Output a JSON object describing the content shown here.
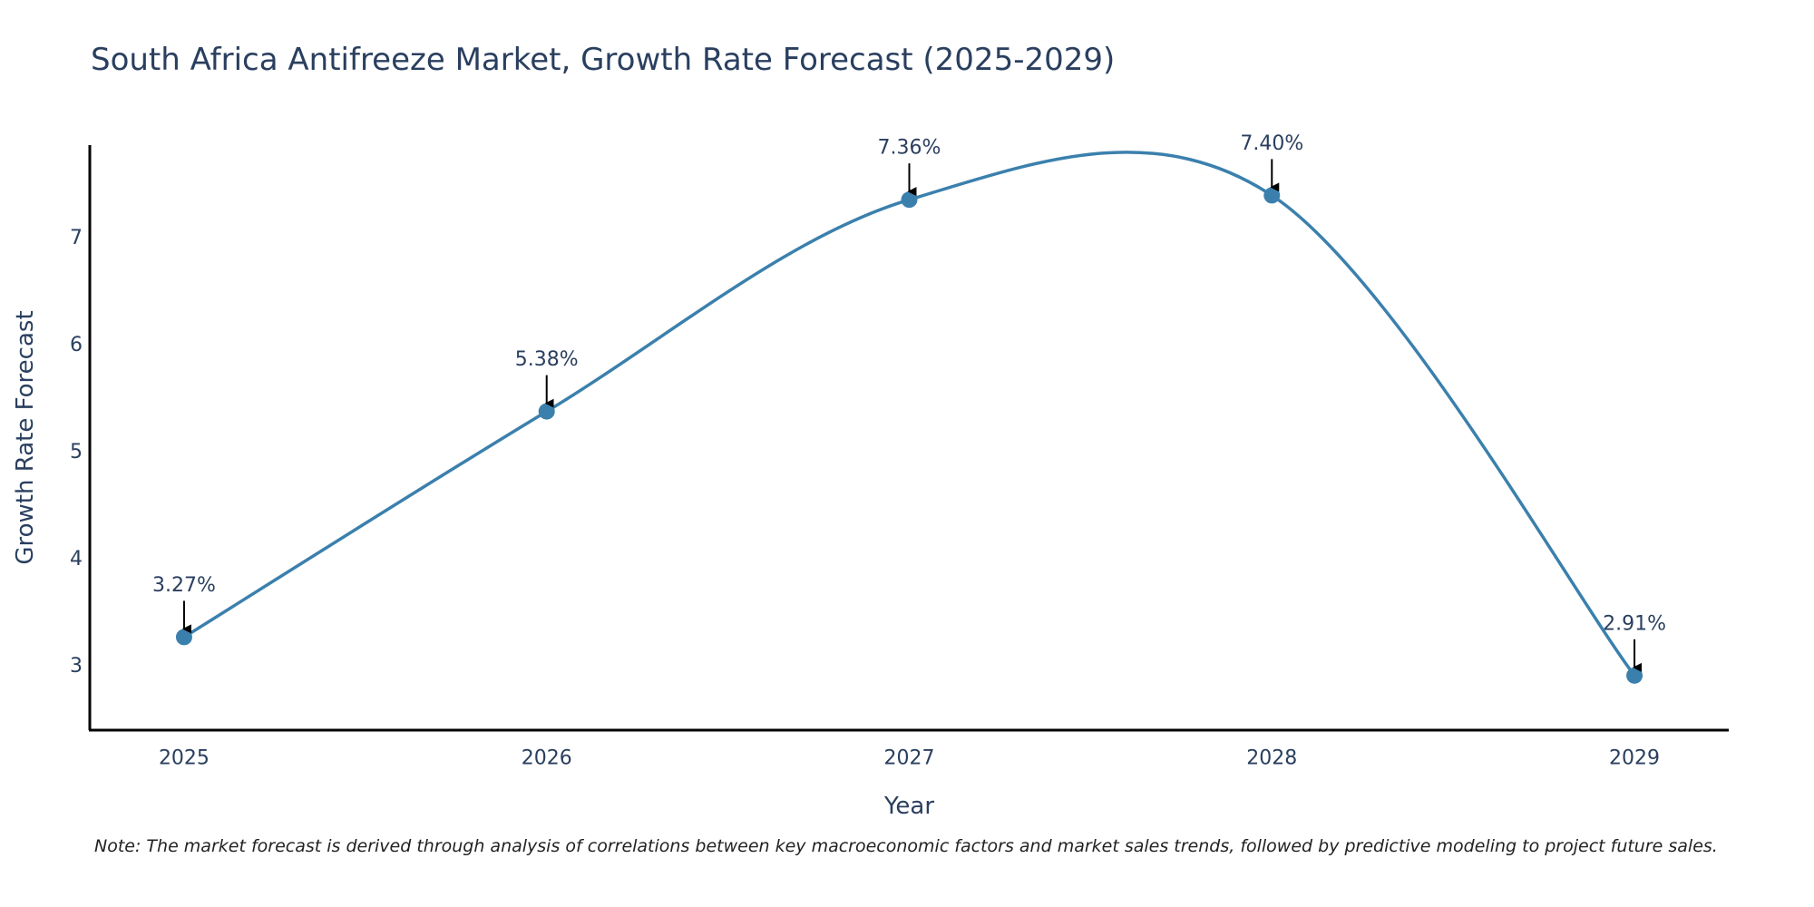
{
  "chart_data": {
    "type": "line",
    "title": "South Africa Antifreeze Market, Growth Rate Forecast (2025-2029)",
    "xlabel": "Year",
    "ylabel": "Growth Rate Forecast",
    "x": [
      "2025",
      "2026",
      "2027",
      "2028",
      "2029"
    ],
    "values": [
      3.27,
      5.38,
      7.36,
      7.4,
      2.91
    ],
    "data_labels": [
      "3.27%",
      "5.38%",
      "7.36%",
      "7.40%",
      "2.91%"
    ],
    "y_ticks": [
      3,
      4,
      5,
      6,
      7
    ],
    "ylim": [
      2.4,
      7.87
    ],
    "xlim": [
      2024.74,
      2029.26
    ],
    "line_shape": "spline",
    "grid": false,
    "line_color": "#3b80ad",
    "marker_color": "#3b80ad",
    "arrow_color": "#000000"
  },
  "note": "Note: The market forecast is derived through analysis of correlations between key macroeconomic factors and market sales trends, followed by predictive modeling to project future sales."
}
